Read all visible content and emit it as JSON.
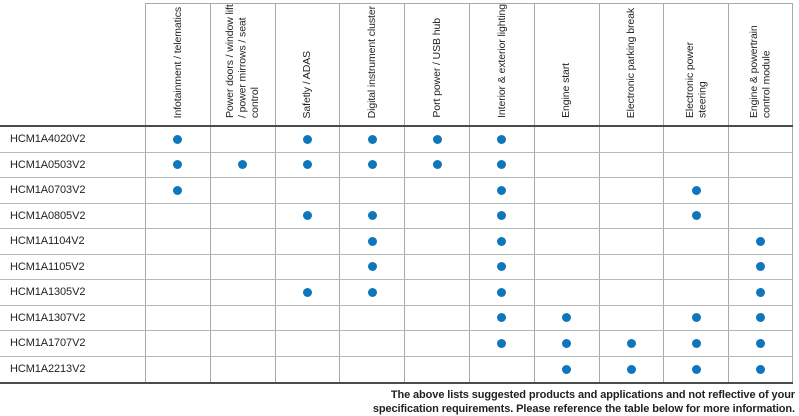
{
  "table": {
    "columns": [
      "Infotainment / telematics",
      "Power doors / window lift / power mirrows / seat control",
      "Safetly / ADAS",
      "Digital instrument cluster",
      "Port power / USB hub",
      "Interior & exterior lighting",
      "Engine start",
      "Electronic parking break",
      "Electronic power steering",
      "Engine & powertrain control module"
    ],
    "rows": [
      {
        "product": "HCM1A4020V2",
        "dots": [
          1,
          0,
          1,
          1,
          1,
          1,
          0,
          0,
          0,
          0
        ]
      },
      {
        "product": "HCM1A0503V2",
        "dots": [
          1,
          1,
          1,
          1,
          1,
          1,
          0,
          0,
          0,
          0
        ]
      },
      {
        "product": "HCM1A0703V2",
        "dots": [
          1,
          0,
          0,
          0,
          0,
          1,
          0,
          0,
          1,
          0
        ]
      },
      {
        "product": "HCM1A0805V2",
        "dots": [
          0,
          0,
          1,
          1,
          0,
          1,
          0,
          0,
          1,
          0
        ]
      },
      {
        "product": "HCM1A1104V2",
        "dots": [
          0,
          0,
          0,
          1,
          0,
          1,
          0,
          0,
          0,
          1
        ]
      },
      {
        "product": "HCM1A1105V2",
        "dots": [
          0,
          0,
          0,
          1,
          0,
          1,
          0,
          0,
          0,
          1
        ]
      },
      {
        "product": "HCM1A1305V2",
        "dots": [
          0,
          0,
          1,
          1,
          0,
          1,
          0,
          0,
          0,
          1
        ]
      },
      {
        "product": "HCM1A1307V2",
        "dots": [
          0,
          0,
          0,
          0,
          0,
          1,
          1,
          0,
          1,
          1
        ]
      },
      {
        "product": "HCM1A1707V2",
        "dots": [
          0,
          0,
          0,
          0,
          0,
          1,
          1,
          1,
          1,
          1
        ]
      },
      {
        "product": "HCM1A2213V2",
        "dots": [
          0,
          0,
          0,
          0,
          0,
          0,
          1,
          1,
          1,
          1
        ]
      }
    ],
    "dot_marker": "filled-circle"
  },
  "footer": {
    "line1": "The above lists suggested products and applications and not reflective of your",
    "line2": "specification requirements. Please reference the table below for more information."
  },
  "colors": {
    "dot": "#0e76bc",
    "grid_line": "#a9a9a9",
    "separator_line": "#4b4b4b",
    "text": "#231f20"
  }
}
